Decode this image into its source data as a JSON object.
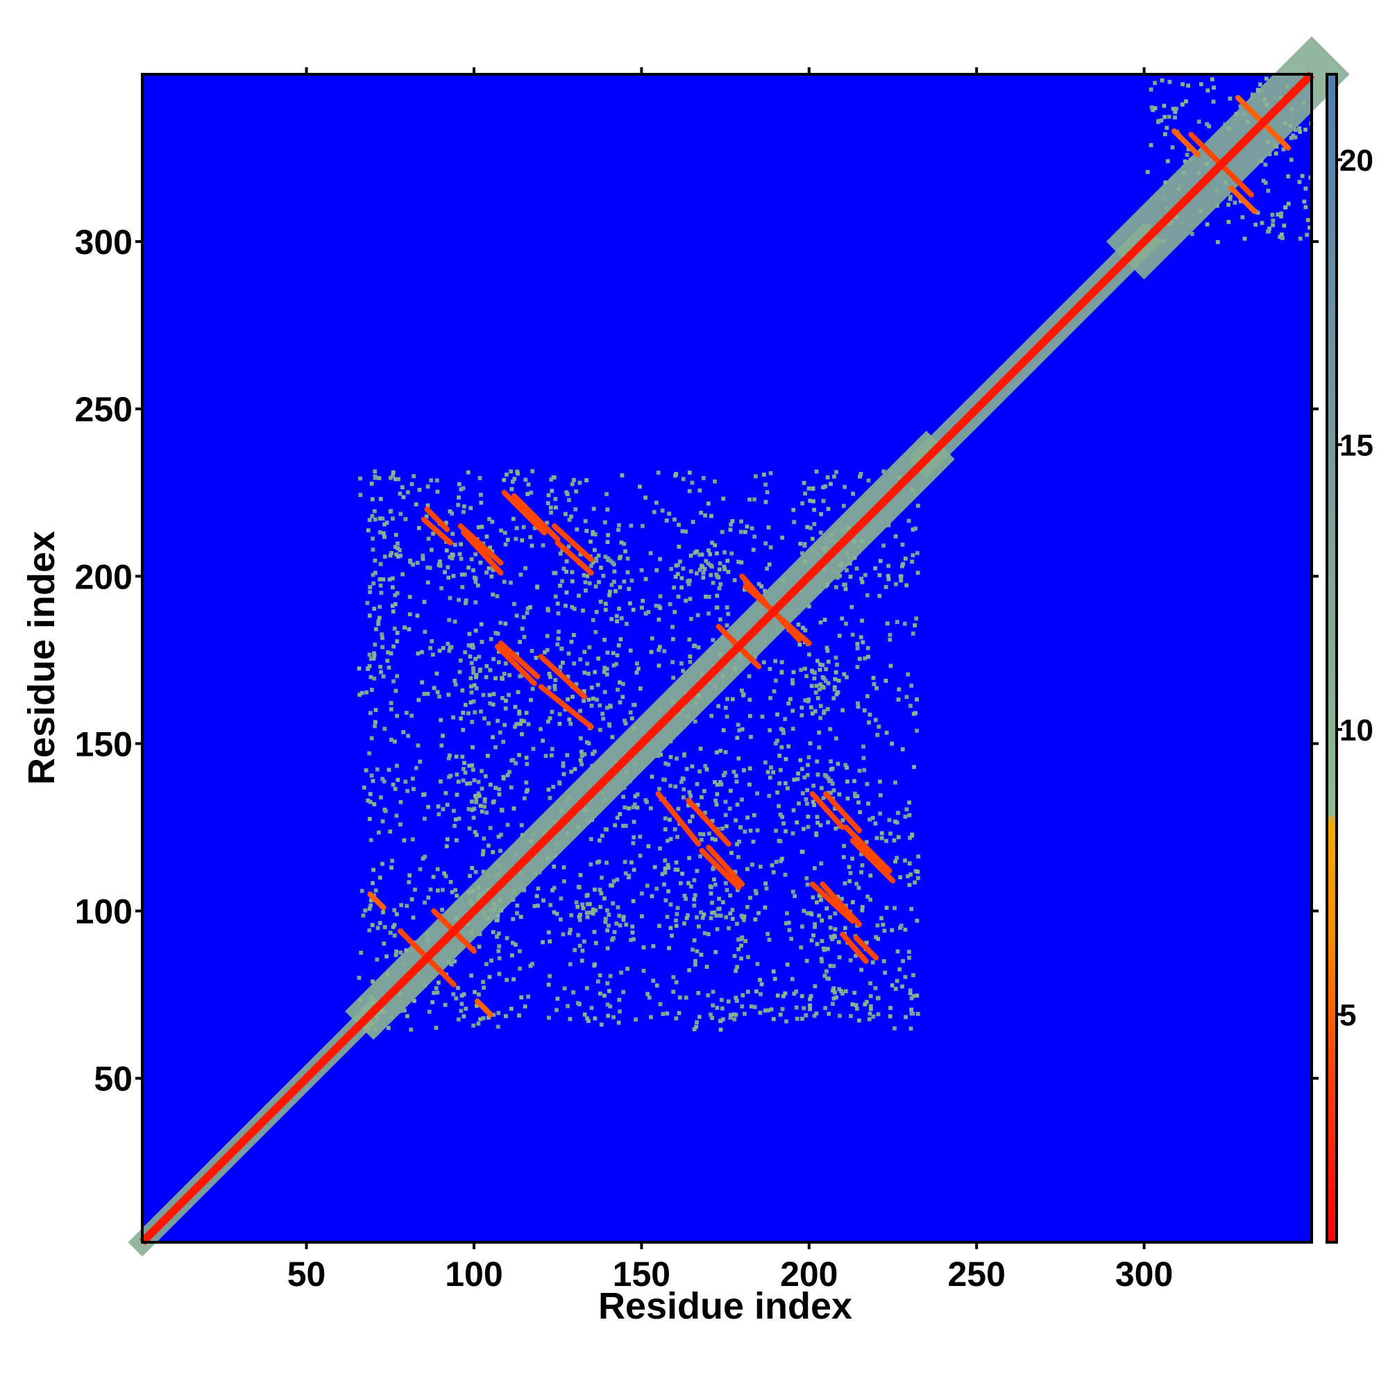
{
  "chart_data": {
    "type": "heatmap",
    "title": "",
    "xlabel": "Residue index",
    "ylabel": "Residue index",
    "xlim": [
      1,
      350
    ],
    "ylim": [
      1,
      350
    ],
    "x_ticks": [
      50,
      100,
      150,
      200,
      250,
      300
    ],
    "y_ticks": [
      50,
      100,
      150,
      200,
      250,
      300
    ],
    "x_tick_labels": [
      "50",
      "100",
      "150",
      "200",
      "250",
      "300"
    ],
    "y_tick_labels": [
      "50",
      "100",
      "150",
      "200",
      "250",
      "300"
    ],
    "background_color": "#0000ff",
    "colorbar": {
      "min": 1,
      "max": 21.5,
      "ticks": [
        5,
        10,
        15,
        20
      ],
      "tick_labels": [
        "5",
        "10",
        "15",
        "20"
      ],
      "stops": [
        {
          "value": 1,
          "color": "#ff0000"
        },
        {
          "value": 4,
          "color": "#ff4500"
        },
        {
          "value": 6.5,
          "color": "#ff8c00"
        },
        {
          "value": 8.4,
          "color": "#ffa500"
        },
        {
          "value": 8.5,
          "color": "#8fbc8f"
        },
        {
          "value": 14,
          "color": "#7f9f9a"
        },
        {
          "value": 21.5,
          "color": "#4f7fb0"
        }
      ]
    },
    "features": {
      "diagonal": {
        "from": 1,
        "to": 350,
        "value": 2
      },
      "near_diagonal_bands": [
        {
          "from": 1,
          "to": 70,
          "width": 3,
          "value": 11
        },
        {
          "from": 70,
          "to": 235,
          "width": 6,
          "value": 10
        },
        {
          "from": 235,
          "to": 300,
          "width": 4,
          "value": 11
        },
        {
          "from": 300,
          "to": 350,
          "width": 8,
          "value": 11
        }
      ],
      "contact_domains": [
        {
          "x_range": [
            68,
            232
          ],
          "y_range": [
            65,
            232
          ],
          "value": 12,
          "note_free": true
        },
        {
          "x_range": [
            305,
            350
          ],
          "y_range": [
            300,
            350
          ],
          "value": 12,
          "note_free": true
        }
      ],
      "contact_segments": [
        {
          "x": [
            86,
            92
          ],
          "y": [
            220,
            214
          ],
          "value": 4
        },
        {
          "x": [
            97,
            108
          ],
          "y": [
            213,
            201
          ],
          "value": 4
        },
        {
          "x": [
            112,
            125
          ],
          "y": [
            224,
            211
          ],
          "value": 4
        },
        {
          "x": [
            125,
            135
          ],
          "y": [
            210,
            201
          ],
          "value": 4
        },
        {
          "x": [
            107,
            118
          ],
          "y": [
            179,
            168
          ],
          "value": 4
        },
        {
          "x": [
            120,
            135
          ],
          "y": [
            167,
            155
          ],
          "value": 4
        },
        {
          "x": [
            164,
            176
          ],
          "y": [
            133,
            120
          ],
          "value": 4
        },
        {
          "x": [
            170,
            180
          ],
          "y": [
            119,
            108
          ],
          "value": 4
        },
        {
          "x": [
            205,
            215
          ],
          "y": [
            135,
            124
          ],
          "value": 4
        },
        {
          "x": [
            213,
            225
          ],
          "y": [
            121,
            109
          ],
          "value": 4
        },
        {
          "x": [
            204,
            215
          ],
          "y": [
            108,
            96
          ],
          "value": 4
        },
        {
          "x": [
            210,
            217
          ],
          "y": [
            93,
            85
          ],
          "value": 4
        },
        {
          "x": [
            174,
            185
          ],
          "y": [
            184,
            173
          ],
          "value": 4
        },
        {
          "x": [
            181,
            190
          ],
          "y": [
            197,
            189
          ],
          "value": 4
        },
        {
          "x": [
            192,
            200
          ],
          "y": [
            187,
            180
          ],
          "value": 4
        },
        {
          "x": [
            78,
            86
          ],
          "y": [
            94,
            86
          ],
          "value": 4
        },
        {
          "x": [
            88,
            94
          ],
          "y": [
            100,
            94
          ],
          "value": 4
        },
        {
          "x": [
            101,
            105
          ],
          "y": [
            73,
            69
          ],
          "value": 5
        },
        {
          "x": [
            69,
            72
          ],
          "y": [
            105,
            102
          ],
          "value": 5
        },
        {
          "x": [
            314,
            323
          ],
          "y": [
            332,
            323
          ],
          "value": 4
        },
        {
          "x": [
            326,
            333
          ],
          "y": [
            316,
            309
          ],
          "value": 5
        },
        {
          "x": [
            335,
            343
          ],
          "y": [
            336,
            328
          ],
          "value": 5
        }
      ]
    }
  }
}
